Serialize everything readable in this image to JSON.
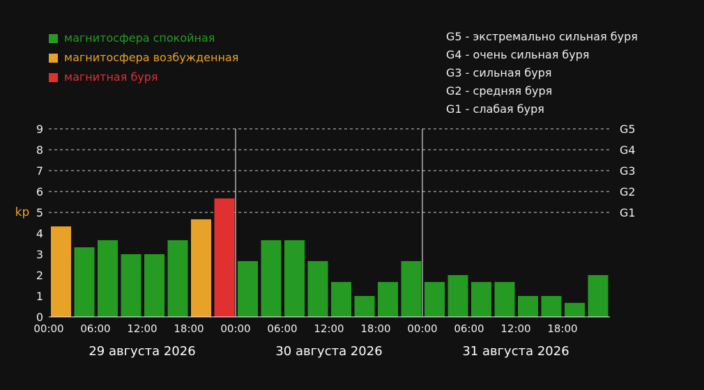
{
  "chart_data": {
    "type": "bar",
    "ylabel": "kp",
    "ylim": [
      0,
      9
    ],
    "yticks": [
      "0",
      "1",
      "2",
      "3",
      "4",
      "5",
      "6",
      "7",
      "8",
      "9"
    ],
    "grid": true,
    "legend": [
      {
        "label": "магнитосфера спокойная",
        "color": "#259b24"
      },
      {
        "label": "магнитосфера возбужденная",
        "color": "#e8a227"
      },
      {
        "label": "магнитная буря",
        "color": "#e03030"
      }
    ],
    "storm_legend": [
      "G5 - экстремально сильная буря",
      "G4 - очень сильная буря",
      "G3 - сильная буря",
      "G2 - средняя буря",
      "G1 - слабая буря"
    ],
    "storm_levels": [
      {
        "label": "G5",
        "value": 9
      },
      {
        "label": "G4",
        "value": 8
      },
      {
        "label": "G3",
        "value": 7
      },
      {
        "label": "G2",
        "value": 6
      },
      {
        "label": "G1",
        "value": 5
      }
    ],
    "x_tick_labels": [
      "00:00",
      "06:00",
      "12:00",
      "18:00",
      "00:00",
      "06:00",
      "12:00",
      "18:00",
      "00:00",
      "06:00",
      "12:00",
      "18:00"
    ],
    "days": [
      {
        "label": "29 августа 2026",
        "values": [
          4.33,
          3.33,
          3.67,
          3.0,
          3.0,
          3.67,
          4.67,
          5.67
        ]
      },
      {
        "label": "30 августа 2026",
        "values": [
          2.67,
          3.67,
          3.67,
          2.67,
          1.67,
          1.0,
          1.67,
          2.67
        ]
      },
      {
        "label": "31 августа 2026",
        "values": [
          1.67,
          2.0,
          1.67,
          1.67,
          1.0,
          1.0,
          0.67,
          2.0
        ]
      }
    ],
    "colors": {
      "quiet": "#259b24",
      "active": "#e8a227",
      "storm": "#e03030",
      "axis_text": "#f0f0f0",
      "ylabel": "#e8a227",
      "grid": "#cfcfcf"
    }
  }
}
